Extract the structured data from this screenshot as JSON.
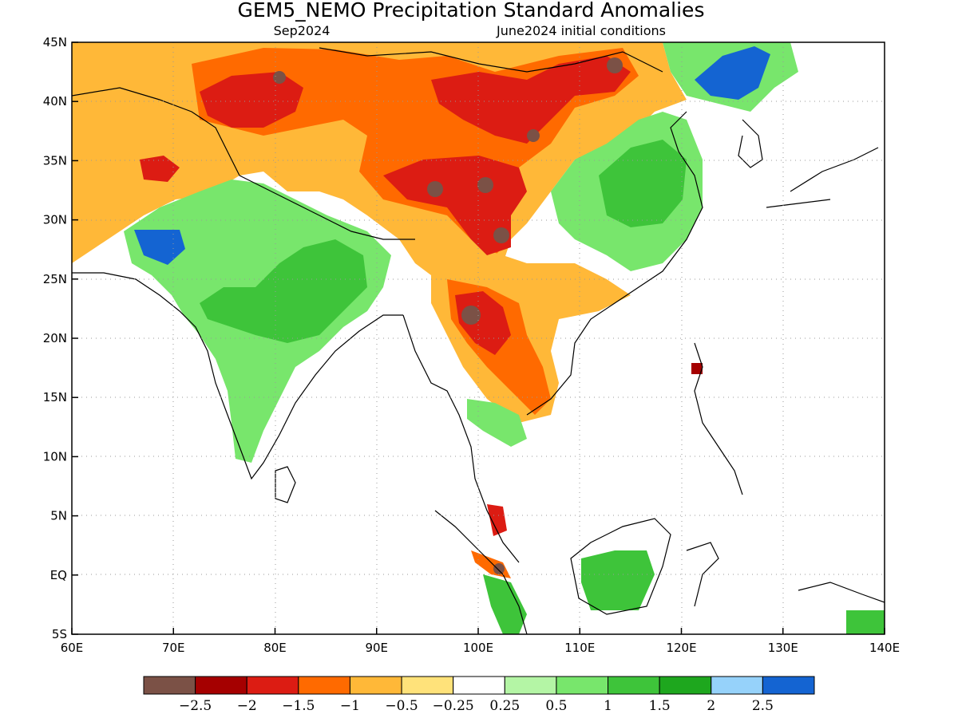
{
  "title": "GEM5_NEMO Precipitation Standard Anomalies",
  "subtitle_left": "Sep2024",
  "subtitle_right": "June2024 initial conditions",
  "map": {
    "lon_range": [
      60,
      140
    ],
    "lat_range": [
      -5,
      45
    ],
    "lon_ticks": [
      "60E",
      "70E",
      "80E",
      "90E",
      "100E",
      "110E",
      "120E",
      "130E",
      "140E"
    ],
    "lat_ticks": [
      "45N",
      "40N",
      "35N",
      "30N",
      "25N",
      "20N",
      "15N",
      "10N",
      "5N",
      "EQ",
      "5S"
    ]
  },
  "colorbar": {
    "colors": [
      "#7b5146",
      "#a50000",
      "#dc1c13",
      "#ff6a00",
      "#ffb838",
      "#ffe27a",
      "#ffffff",
      "#b4f5a5",
      "#78e66c",
      "#3ec43a",
      "#1ea71e",
      "#96d2fa",
      "#1464d2"
    ],
    "labels": [
      "−2.5",
      "−2",
      "−1.5",
      "−1",
      "−0.5",
      "−0.25",
      "0.25",
      "0.5",
      "1",
      "1.5",
      "2",
      "2.5"
    ]
  }
}
